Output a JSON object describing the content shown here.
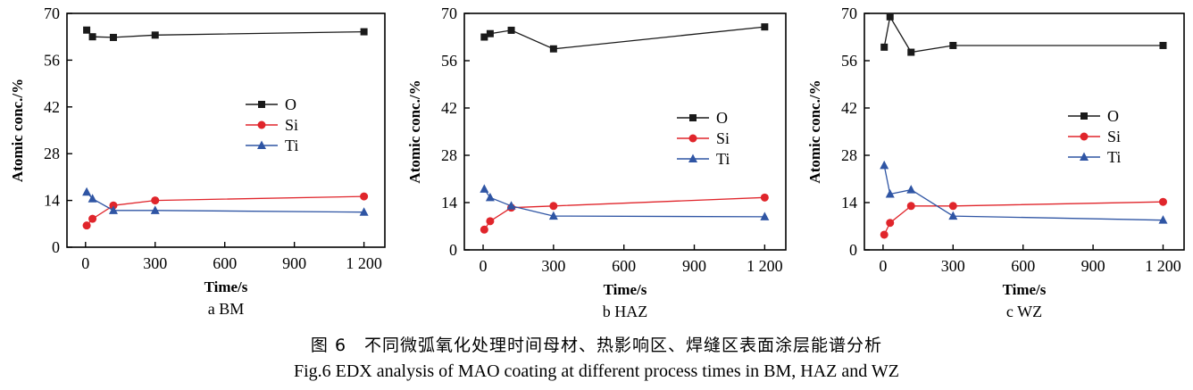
{
  "figure": {
    "caption_cn": "图 6　不同微弧氧化处理时间母材、热影响区、焊缝区表面涂层能谱分析",
    "caption_en": "Fig.6 EDX analysis of MAO coating at different process times in BM, HAZ and WZ"
  },
  "colors": {
    "O": "#1a1a1a",
    "Si": "#e0252b",
    "Ti": "#2f55a4",
    "axis": "#000000"
  },
  "chart_data": [
    {
      "type": "line",
      "panel_label": "a  BM",
      "xlabel": "Time/s",
      "ylabel": "Atomic conc./%",
      "x_ticks": [
        0,
        300,
        600,
        900,
        1200
      ],
      "x_tick_labels": [
        "0",
        "300",
        "600",
        "900",
        "1 200"
      ],
      "y_ticks": [
        0,
        14,
        28,
        42,
        56,
        70
      ],
      "y_tick_labels": [
        "0",
        "14",
        "28",
        "42",
        "56",
        "70"
      ],
      "xlim": [
        -80,
        1290
      ],
      "ylim": [
        0,
        70
      ],
      "legend_position": "center",
      "series": [
        {
          "name": "O",
          "marker": "square",
          "x": [
            5,
            30,
            120,
            300,
            1200
          ],
          "y": [
            65,
            63,
            62.8,
            63.5,
            64.5
          ]
        },
        {
          "name": "Si",
          "marker": "circle",
          "x": [
            5,
            30,
            120,
            300,
            1200
          ],
          "y": [
            6.5,
            8.5,
            12.5,
            14,
            15.2
          ]
        },
        {
          "name": "Ti",
          "marker": "triangle",
          "x": [
            5,
            30,
            120,
            300,
            1200
          ],
          "y": [
            16.5,
            14.5,
            11,
            11,
            10.5
          ]
        }
      ]
    },
    {
      "type": "line",
      "panel_label": "b  HAZ",
      "xlabel": "Time/s",
      "ylabel": "Atomic conc./%",
      "x_ticks": [
        0,
        300,
        600,
        900,
        1200
      ],
      "x_tick_labels": [
        "0",
        "300",
        "600",
        "900",
        "1 200"
      ],
      "y_ticks": [
        0,
        14,
        28,
        42,
        56,
        70
      ],
      "y_tick_labels": [
        "0",
        "14",
        "28",
        "42",
        "56",
        "70"
      ],
      "xlim": [
        -80,
        1290
      ],
      "ylim": [
        0,
        70
      ],
      "legend_position": "center-right",
      "series": [
        {
          "name": "O",
          "marker": "square",
          "x": [
            5,
            30,
            120,
            300,
            1200
          ],
          "y": [
            63,
            64,
            65,
            59.5,
            66
          ]
        },
        {
          "name": "Si",
          "marker": "circle",
          "x": [
            5,
            30,
            120,
            300,
            1200
          ],
          "y": [
            6,
            8.5,
            12.5,
            13,
            15.5
          ]
        },
        {
          "name": "Ti",
          "marker": "triangle",
          "x": [
            5,
            30,
            120,
            300,
            1200
          ],
          "y": [
            18,
            15.5,
            13,
            10,
            9.8
          ]
        }
      ]
    },
    {
      "type": "line",
      "panel_label": "c  WZ",
      "xlabel": "Time/s",
      "ylabel": "Atomic conc./%",
      "x_ticks": [
        0,
        300,
        600,
        900,
        1200
      ],
      "x_tick_labels": [
        "0",
        "300",
        "600",
        "900",
        "1 200"
      ],
      "y_ticks": [
        0,
        14,
        28,
        42,
        56,
        70
      ],
      "y_tick_labels": [
        "0",
        "14",
        "28",
        "42",
        "56",
        "70"
      ],
      "xlim": [
        -80,
        1290
      ],
      "ylim": [
        0,
        70
      ],
      "legend_position": "center-right",
      "series": [
        {
          "name": "O",
          "marker": "square",
          "x": [
            5,
            30,
            120,
            300,
            1200
          ],
          "y": [
            60,
            69,
            58.5,
            60.5,
            60.5
          ]
        },
        {
          "name": "Si",
          "marker": "circle",
          "x": [
            5,
            30,
            120,
            300,
            1200
          ],
          "y": [
            4.5,
            8,
            13,
            13,
            14.2
          ]
        },
        {
          "name": "Ti",
          "marker": "triangle",
          "x": [
            5,
            30,
            120,
            300,
            1200
          ],
          "y": [
            25,
            16.5,
            17.8,
            10,
            8.8
          ]
        }
      ]
    }
  ]
}
